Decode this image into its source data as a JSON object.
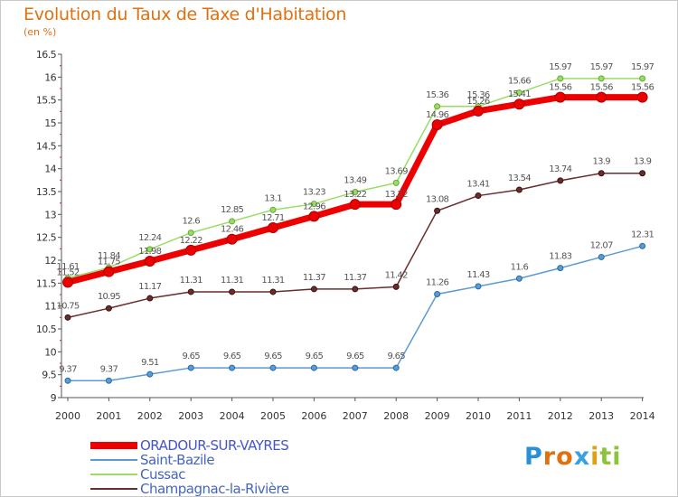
{
  "title": "Evolution du Taux de Taxe d'Habitation",
  "unit": "(en %)",
  "logo": {
    "text": "Proxiti",
    "letters": [
      {
        "ch": "P",
        "color": "#2a8fd6"
      },
      {
        "ch": "r",
        "color": "#e07010"
      },
      {
        "ch": "o",
        "color": "#e07010"
      },
      {
        "ch": "x",
        "color": "#3aa0e0"
      },
      {
        "ch": "i",
        "color": "#e0a010"
      },
      {
        "ch": "t",
        "color": "#8cc43c"
      },
      {
        "ch": "i",
        "color": "#8cc43c"
      }
    ]
  },
  "chart_data": {
    "type": "line",
    "title": "Evolution du Taux de Taxe d'Habitation",
    "ylabel": "(en %)",
    "xlabel": "",
    "x": [
      "2000",
      "2001",
      "2002",
      "2003",
      "2004",
      "2005",
      "2006",
      "2007",
      "2008",
      "2009",
      "2010",
      "2011",
      "2012",
      "2013",
      "2014"
    ],
    "ylim": [
      9,
      16.5
    ],
    "yticks": [
      "9",
      "9.5",
      "10",
      "10.5",
      "11",
      "11.5",
      "12",
      "12.5",
      "13",
      "13.5",
      "14",
      "14.5",
      "15",
      "15.5",
      "16",
      "16.5"
    ],
    "grid": false,
    "legend_position": "bottom-left",
    "series": [
      {
        "name": "ORADOUR-SUR-VAYRES",
        "color": "#ee0000",
        "values": [
          11.52,
          11.75,
          11.98,
          12.22,
          12.46,
          12.71,
          12.96,
          13.22,
          13.22,
          14.96,
          15.26,
          15.41,
          15.56,
          15.56,
          15.56
        ],
        "labels": [
          "11.52",
          "11.75",
          "11.98",
          "12.22",
          "12.46",
          "12.71",
          "12.96",
          "13.22",
          "13.22",
          "14.96",
          "15.26",
          "15.41",
          "15.56",
          "15.56",
          "15.56"
        ]
      },
      {
        "name": "Saint-Bazile",
        "color": "#5b9bd5",
        "values": [
          9.37,
          9.37,
          9.51,
          9.65,
          9.65,
          9.65,
          9.65,
          9.65,
          9.65,
          11.26,
          11.43,
          11.6,
          11.83,
          12.07,
          12.31
        ],
        "labels": [
          "9.37",
          "9.37",
          "9.51",
          "9.65",
          "9.65",
          "9.65",
          "9.65",
          "9.65",
          "9.65",
          "11.26",
          "11.43",
          "11.6",
          "11.83",
          "12.07",
          "12.31"
        ]
      },
      {
        "name": "Cussac",
        "color": "#99dd66",
        "values": [
          11.61,
          11.84,
          12.24,
          12.6,
          12.85,
          13.1,
          13.23,
          13.49,
          13.69,
          15.36,
          15.36,
          15.66,
          15.97,
          15.97,
          15.97
        ],
        "labels": [
          "11.61",
          "11.84",
          "12.24",
          "12.6",
          "12.85",
          "13.1",
          "13.23",
          "13.49",
          "13.69",
          "15.36",
          "15.36",
          "15.66",
          "15.97",
          "15.97",
          "15.97"
        ]
      },
      {
        "name": "Champagnac-la-Rivière",
        "color": "#6b2c2c",
        "values": [
          10.75,
          10.95,
          11.17,
          11.31,
          11.31,
          11.31,
          11.37,
          11.37,
          11.42,
          13.08,
          13.41,
          13.54,
          13.74,
          13.9,
          13.9
        ],
        "labels": [
          "10.75",
          "10.95",
          "11.17",
          "11.31",
          "11.31",
          "11.31",
          "11.37",
          "11.37",
          "11.42",
          "13.08",
          "13.41",
          "13.54",
          "13.74",
          "13.9",
          "13.9"
        ]
      }
    ]
  }
}
